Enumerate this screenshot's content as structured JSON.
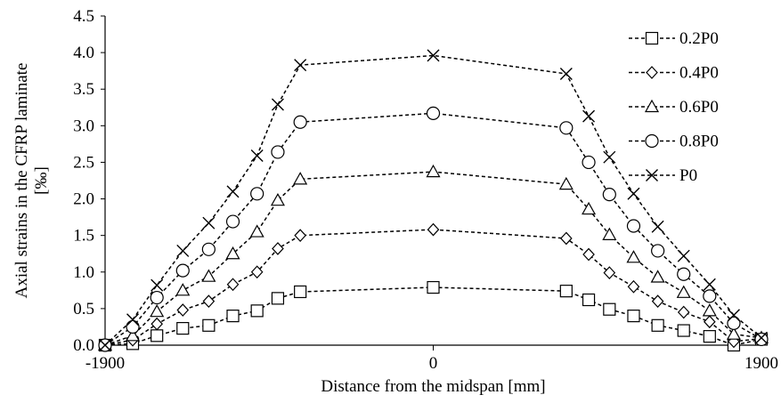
{
  "chart_data": {
    "type": "line",
    "title": "",
    "xlabel": "Distance from the midspan [mm]",
    "ylabel_lines": [
      "Axial strains in the CFRP laminate",
      "[‰]"
    ],
    "xlim": [
      -1900,
      1900
    ],
    "ylim": [
      0,
      4.5
    ],
    "x_ticks": [
      -1900,
      0,
      1900
    ],
    "y_ticks": [
      "0.0",
      "0.5",
      "1.0",
      "1.5",
      "2.0",
      "2.5",
      "3.0",
      "3.5",
      "4.0",
      "4.5"
    ],
    "grid": "none",
    "legend_position": "top-right",
    "x": [
      -1900,
      -1740,
      -1600,
      -1450,
      -1300,
      -1160,
      -1020,
      -900,
      -770,
      0,
      770,
      900,
      1020,
      1160,
      1300,
      1450,
      1600,
      1740,
      1900
    ],
    "series": [
      {
        "name": "0.2P0",
        "marker": "square",
        "values": [
          0,
          0.02,
          0.13,
          0.23,
          0.27,
          0.4,
          0.47,
          0.64,
          0.73,
          0.79,
          0.74,
          0.62,
          0.49,
          0.4,
          0.27,
          0.2,
          0.12,
          0.0,
          0.08
        ]
      },
      {
        "name": "0.4P0",
        "marker": "diamond",
        "values": [
          0,
          0.07,
          0.29,
          0.48,
          0.6,
          0.83,
          1.0,
          1.32,
          1.5,
          1.58,
          1.46,
          1.24,
          0.99,
          0.8,
          0.6,
          0.45,
          0.32,
          0.05,
          0.09
        ]
      },
      {
        "name": "0.6P0",
        "marker": "triangle",
        "values": [
          0,
          0.13,
          0.46,
          0.75,
          0.94,
          1.25,
          1.55,
          1.98,
          2.27,
          2.37,
          2.2,
          1.86,
          1.51,
          1.2,
          0.93,
          0.72,
          0.47,
          0.15,
          0.1
        ]
      },
      {
        "name": "0.8P0",
        "marker": "circle",
        "values": [
          0,
          0.25,
          0.65,
          1.02,
          1.31,
          1.69,
          2.07,
          2.64,
          3.05,
          3.17,
          2.97,
          2.5,
          2.06,
          1.63,
          1.29,
          0.97,
          0.67,
          0.3,
          0.08
        ]
      },
      {
        "name": "P0",
        "marker": "x",
        "values": [
          0,
          0.35,
          0.82,
          1.29,
          1.67,
          2.1,
          2.59,
          3.29,
          3.83,
          3.96,
          3.71,
          3.13,
          2.57,
          2.07,
          1.62,
          1.22,
          0.83,
          0.41,
          0.1
        ]
      }
    ]
  }
}
